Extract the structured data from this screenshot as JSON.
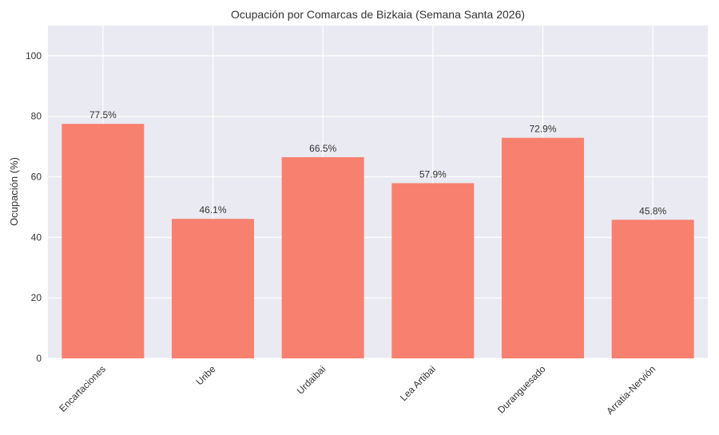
{
  "chart_data": {
    "type": "bar",
    "title": "Ocupación por Comarcas de Bizkaia (Semana Santa 2026)",
    "xlabel": "",
    "ylabel": "Ocupación (%)",
    "categories": [
      "Encartaciones",
      "Uribe",
      "Urdaibai",
      "Lea Artibai",
      "Duranguesado",
      "Arratia-Nervión"
    ],
    "values": [
      77.5,
      46.1,
      66.5,
      57.9,
      72.9,
      45.8
    ],
    "data_labels": [
      "77.5%",
      "46.1%",
      "66.5%",
      "57.9%",
      "72.9%",
      "45.8%"
    ],
    "ylim": [
      0,
      110
    ],
    "yticks": [
      0,
      20,
      40,
      60,
      80,
      100
    ],
    "grid": true,
    "bar_color": "#F8806F",
    "background_color": "#EAEAF2"
  }
}
